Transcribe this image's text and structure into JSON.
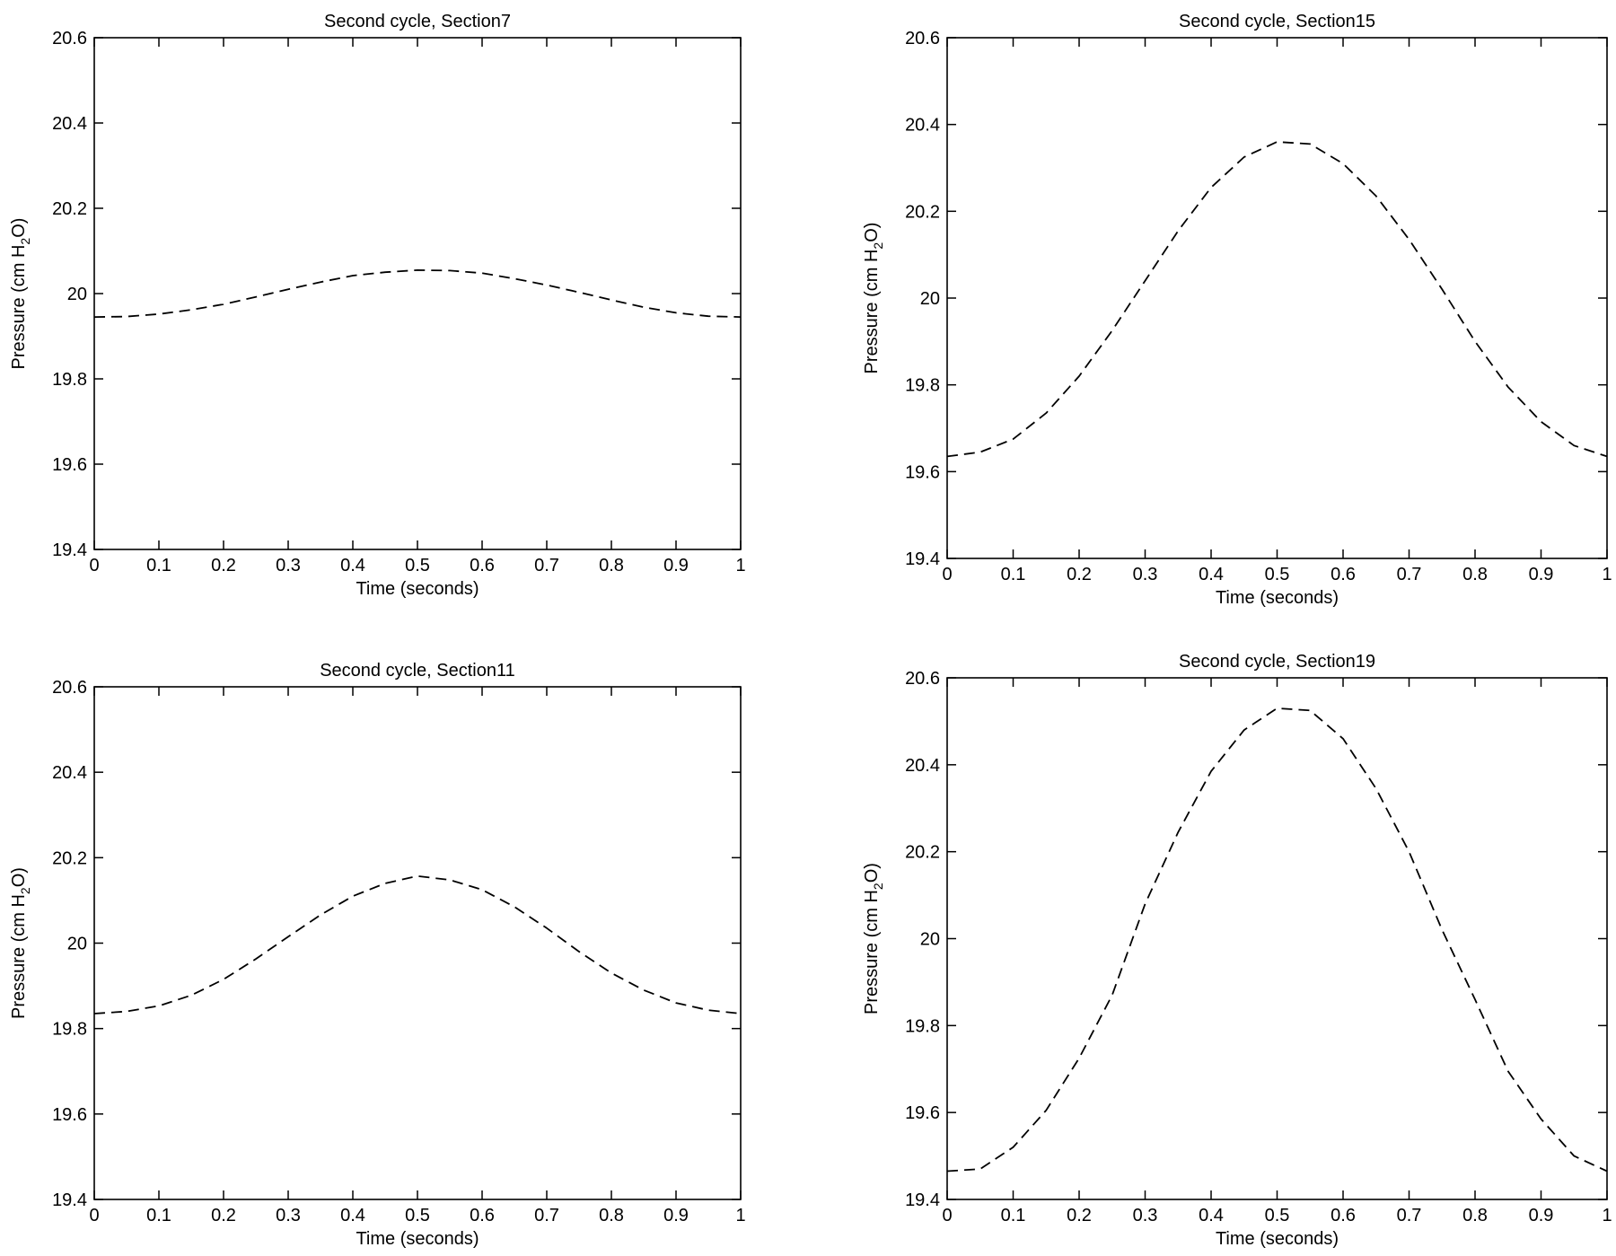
{
  "chart_data": [
    {
      "type": "line",
      "title": "Second cycle, Section7",
      "xlabel": "Time (seconds)",
      "ylabel": {
        "prefix": "Pressure (cm H",
        "sub": "2",
        "suffix": "O)"
      },
      "xlim": [
        0,
        1
      ],
      "ylim": [
        19.4,
        20.6
      ],
      "xticks": [
        "0",
        "0.1",
        "0.2",
        "0.3",
        "0.4",
        "0.5",
        "0.6",
        "0.7",
        "0.8",
        "0.9",
        "1"
      ],
      "yticks": [
        "19.4",
        "19.6",
        "19.8",
        "20",
        "20.2",
        "20.4",
        "20.6"
      ],
      "grid": false,
      "line_style": "dashed",
      "line_color": "#000000",
      "series": [
        {
          "x": [
            0,
            0.05,
            0.1,
            0.15,
            0.2,
            0.25,
            0.3,
            0.35,
            0.4,
            0.45,
            0.5,
            0.55,
            0.6,
            0.65,
            0.7,
            0.75,
            0.8,
            0.85,
            0.9,
            0.95,
            1.0
          ],
          "y": [
            19.945,
            19.946,
            19.952,
            19.962,
            19.975,
            19.992,
            20.01,
            20.027,
            20.042,
            20.05,
            20.055,
            20.054,
            20.048,
            20.035,
            20.02,
            20.003,
            19.985,
            19.968,
            19.955,
            19.947,
            19.945
          ]
        }
      ]
    },
    {
      "type": "line",
      "title": "Second cycle, Section15",
      "xlabel": "Time (seconds)",
      "ylabel": {
        "prefix": "Pressure (cm H",
        "sub": "2",
        "suffix": "O)"
      },
      "xlim": [
        0,
        1
      ],
      "ylim": [
        19.4,
        20.6
      ],
      "xticks": [
        "0",
        "0.1",
        "0.2",
        "0.3",
        "0.4",
        "0.5",
        "0.6",
        "0.7",
        "0.8",
        "0.9",
        "1"
      ],
      "yticks": [
        "19.4",
        "19.6",
        "19.8",
        "20",
        "20.2",
        "20.4",
        "20.6"
      ],
      "grid": false,
      "line_style": "dashed",
      "line_color": "#000000",
      "series": [
        {
          "x": [
            0,
            0.05,
            0.1,
            0.15,
            0.2,
            0.25,
            0.3,
            0.35,
            0.4,
            0.45,
            0.5,
            0.55,
            0.6,
            0.65,
            0.7,
            0.75,
            0.8,
            0.85,
            0.9,
            0.95,
            1.0
          ],
          "y": [
            19.635,
            19.645,
            19.675,
            19.735,
            19.82,
            19.925,
            20.04,
            20.155,
            20.255,
            20.325,
            20.36,
            20.355,
            20.31,
            20.235,
            20.135,
            20.02,
            19.9,
            19.795,
            19.715,
            19.66,
            19.635
          ]
        }
      ]
    },
    {
      "type": "line",
      "title": "Second cycle, Section11",
      "xlabel": "Time (seconds)",
      "ylabel": {
        "prefix": "Pressure (cm H",
        "sub": "2",
        "suffix": "O)"
      },
      "xlim": [
        0,
        1
      ],
      "ylim": [
        19.4,
        20.6
      ],
      "xticks": [
        "0",
        "0.1",
        "0.2",
        "0.3",
        "0.4",
        "0.5",
        "0.6",
        "0.7",
        "0.8",
        "0.9",
        "1"
      ],
      "yticks": [
        "19.4",
        "19.6",
        "19.8",
        "20",
        "20.2",
        "20.4",
        "20.6"
      ],
      "grid": false,
      "line_style": "dashed",
      "line_color": "#000000",
      "series": [
        {
          "x": [
            0,
            0.05,
            0.1,
            0.15,
            0.2,
            0.25,
            0.3,
            0.35,
            0.4,
            0.45,
            0.5,
            0.55,
            0.6,
            0.65,
            0.7,
            0.75,
            0.8,
            0.85,
            0.9,
            0.95,
            1.0
          ],
          "y": [
            19.835,
            19.84,
            19.853,
            19.878,
            19.915,
            19.963,
            20.015,
            20.066,
            20.11,
            20.14,
            20.157,
            20.148,
            20.125,
            20.085,
            20.035,
            19.98,
            19.93,
            19.89,
            19.86,
            19.843,
            19.835
          ]
        }
      ]
    },
    {
      "type": "line",
      "title": "Second cycle, Section19",
      "xlabel": "Time (seconds)",
      "ylabel": {
        "prefix": "Pressure (cm H",
        "sub": "2",
        "suffix": "O)"
      },
      "xlim": [
        0,
        1
      ],
      "ylim": [
        19.4,
        20.6
      ],
      "xticks": [
        "0",
        "0.1",
        "0.2",
        "0.3",
        "0.4",
        "0.5",
        "0.6",
        "0.7",
        "0.8",
        "0.9",
        "1"
      ],
      "yticks": [
        "19.4",
        "19.6",
        "19.8",
        "20",
        "20.2",
        "20.4",
        "20.6"
      ],
      "grid": false,
      "line_style": "dashed",
      "line_color": "#000000",
      "series": [
        {
          "x": [
            0,
            0.05,
            0.1,
            0.15,
            0.2,
            0.25,
            0.3,
            0.35,
            0.4,
            0.45,
            0.5,
            0.55,
            0.6,
            0.65,
            0.7,
            0.75,
            0.8,
            0.85,
            0.9,
            0.95,
            1.0
          ],
          "y": [
            19.465,
            19.47,
            19.52,
            19.605,
            19.725,
            19.87,
            20.08,
            20.245,
            20.385,
            20.48,
            20.53,
            20.525,
            20.46,
            20.345,
            20.2,
            20.02,
            19.86,
            19.695,
            19.585,
            19.5,
            19.465
          ]
        }
      ]
    }
  ]
}
